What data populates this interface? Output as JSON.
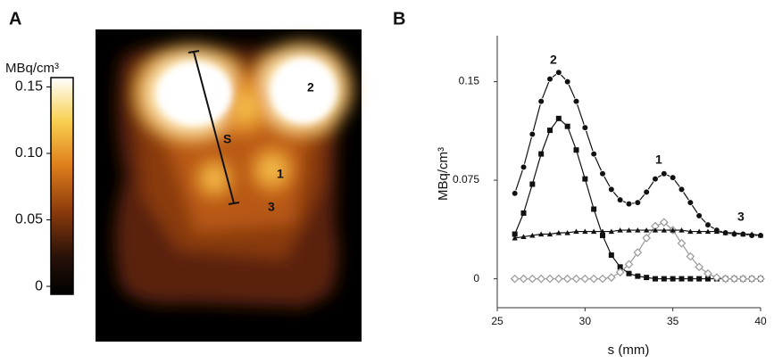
{
  "chart_data": [
    {
      "type": "heatmap",
      "panel_label": "A",
      "colorbar_label": "MBq/cm³",
      "clim": [
        -0.006,
        0.157
      ],
      "cticks": [
        0,
        {
          "value": 0.05,
          "label": "0.05"
        },
        {
          "value": 0.1,
          "label": "0.10"
        },
        0.15
      ],
      "annotations": [
        "2",
        "S",
        "1",
        "3"
      ]
    },
    {
      "type": "line",
      "panel_label": "B",
      "xlabel": "s (mm)",
      "ylabel": "MBq/cm³",
      "x": [
        26,
        26.5,
        27,
        27.5,
        28,
        28.5,
        29,
        29.5,
        30,
        30.5,
        31,
        31.5,
        32,
        32.5,
        33,
        33.5,
        34,
        34.5,
        35,
        35.5,
        36,
        36.5,
        37,
        37.5,
        38,
        38.5,
        39,
        39.5,
        40
      ],
      "xlim": [
        25,
        40
      ],
      "xticks": [
        25,
        30,
        35,
        40
      ],
      "ylim": [
        -0.022,
        0.185
      ],
      "yticks": [
        0,
        0.075,
        0.15
      ],
      "annotations": [
        "2",
        "1",
        "3"
      ],
      "series": [
        {
          "marker": "circle",
          "color": "#111111",
          "values": [
            0.065,
            0.085,
            0.11,
            0.135,
            0.152,
            0.157,
            0.15,
            0.135,
            0.115,
            0.095,
            0.08,
            0.068,
            0.06,
            0.057,
            0.058,
            0.066,
            0.076,
            0.08,
            0.077,
            0.068,
            0.058,
            0.048,
            0.041,
            0.037,
            0.035,
            0.034,
            0.034,
            0.033,
            0.033
          ]
        },
        {
          "marker": "square",
          "color": "#111111",
          "values": [
            0.034,
            0.05,
            0.072,
            0.095,
            0.113,
            0.122,
            0.116,
            0.098,
            0.076,
            0.053,
            0.033,
            0.018,
            0.009,
            0.004,
            0.002,
            0.001,
            0,
            0,
            0,
            0,
            0,
            0,
            0,
            0,
            0,
            0,
            0,
            0,
            0
          ]
        },
        {
          "marker": "diamond",
          "color": "#999999",
          "values": [
            0,
            0,
            0,
            0,
            0,
            0,
            0,
            0,
            0,
            0,
            0,
            0.001,
            0.005,
            0.011,
            0.02,
            0.031,
            0.04,
            0.043,
            0.037,
            0.027,
            0.017,
            0.009,
            0.004,
            0.001,
            0,
            0,
            0,
            0,
            0
          ]
        },
        {
          "marker": "triangle",
          "color": "#111111",
          "values": [
            0.031,
            0.032,
            0.033,
            0.034,
            0.034,
            0.035,
            0.035,
            0.036,
            0.036,
            0.036,
            0.036,
            0.036,
            0.037,
            0.037,
            0.037,
            0.037,
            0.037,
            0.037,
            0.037,
            0.037,
            0.036,
            0.036,
            0.036,
            0.036,
            0.035,
            0.035,
            0.034,
            0.034,
            0.033
          ]
        }
      ]
    }
  ]
}
